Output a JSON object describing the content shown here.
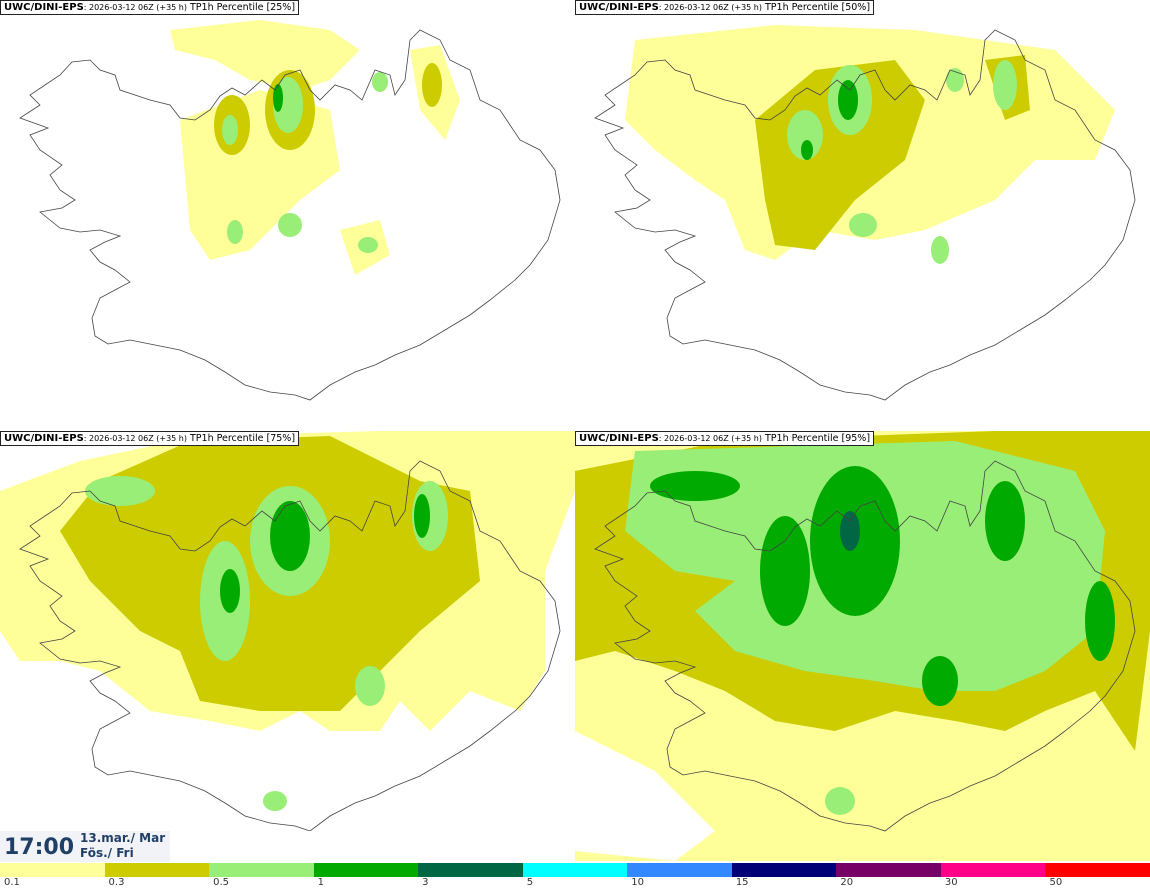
{
  "panels": [
    {
      "model": "UWC/DINI-EPS",
      "run": ": 2026-03-12 06Z (+35 h)",
      "product": " TP1h Percentile [25%]"
    },
    {
      "model": "UWC/DINI-EPS",
      "run": ": 2026-03-12 06Z (+35 h)",
      "product": " TP1h Percentile [50%]"
    },
    {
      "model": "UWC/DINI-EPS",
      "run": ": 2026-03-12 06Z (+35 h)",
      "product": " TP1h Percentile [75%]"
    },
    {
      "model": "UWC/DINI-EPS",
      "run": ": 2026-03-12 06Z (+35 h)",
      "product": " TP1h Percentile [95%]"
    }
  ],
  "valid_time": {
    "time": "17:00",
    "date_line1": "13.mar./ Mar",
    "date_line2": "Fös./ Fri"
  },
  "legend": {
    "ticks": [
      "0.1",
      "0.3",
      "0.5",
      "1",
      "3",
      "5",
      "10",
      "15",
      "20",
      "30",
      "50"
    ],
    "colors": [
      "#ffff99",
      "#cccc00",
      "#99ee77",
      "#00aa00",
      "#006644",
      "#00ffff",
      "#3388ff",
      "#000077",
      "#770066",
      "#ff0088",
      "#ff0000"
    ]
  },
  "colors": {
    "land_outline": "#444444",
    "background": "#ffffff"
  }
}
